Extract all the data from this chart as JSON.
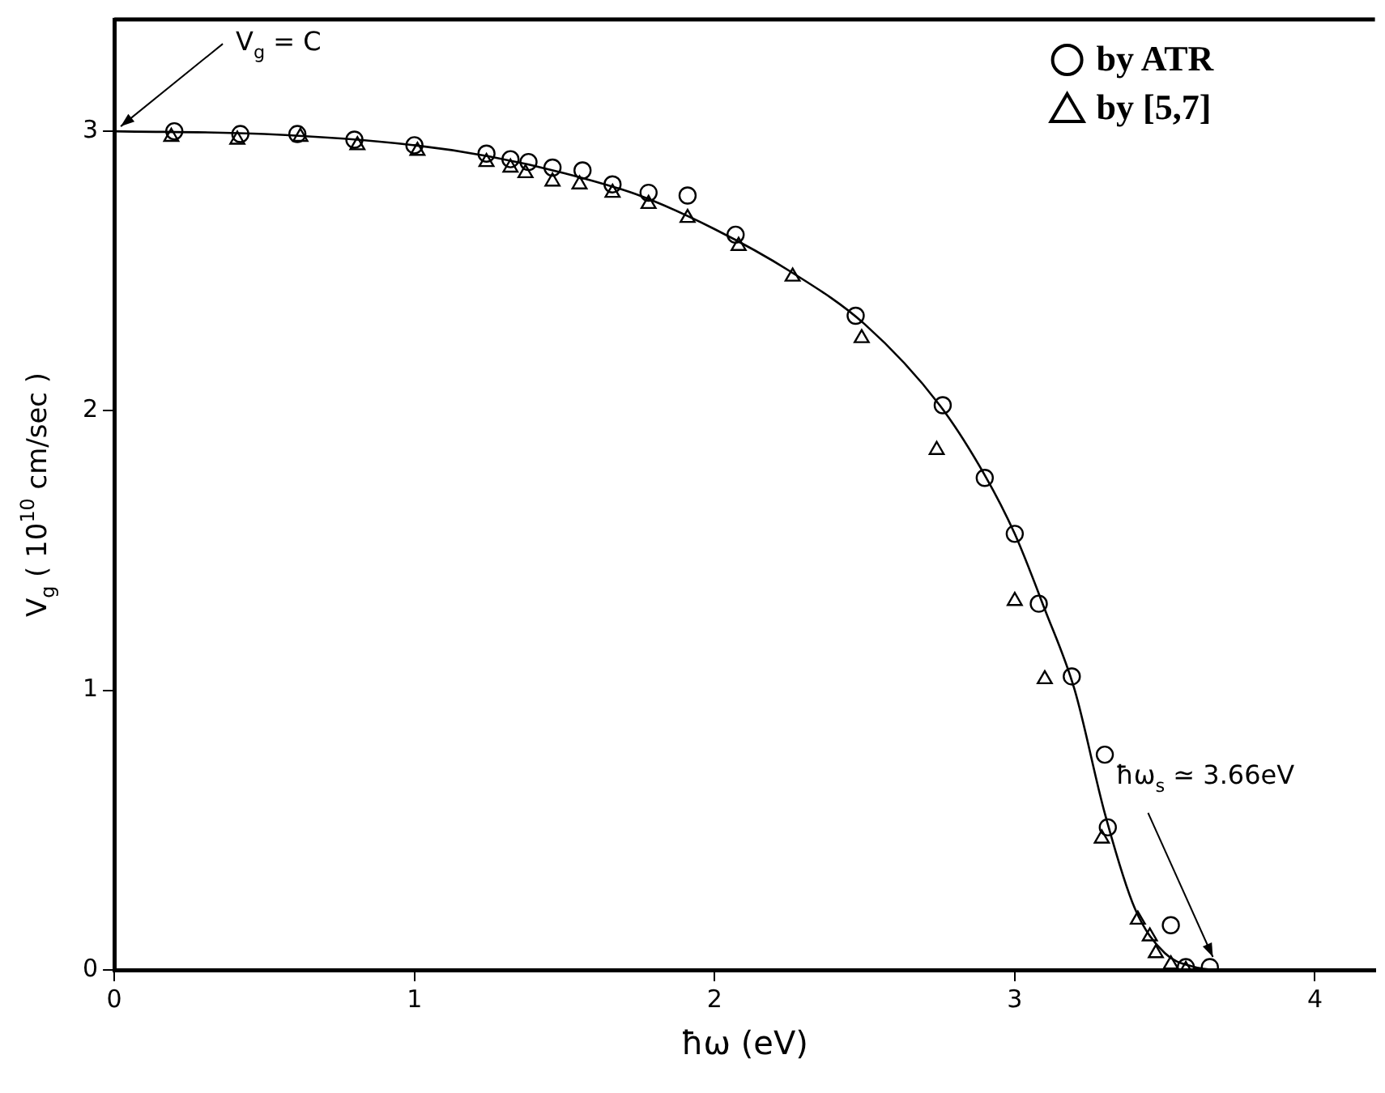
{
  "chart_data": {
    "type": "scatter",
    "xlabel": "ħω (eV)",
    "ylabel": "V$_{g}$ ( 10$^{10}$ cm/sec )",
    "xlim": [
      0,
      4.2
    ],
    "xticks": [
      0,
      1,
      2,
      3,
      4
    ],
    "ylim": [
      0,
      3.4
    ],
    "yticks": [
      0,
      1,
      2,
      3
    ],
    "grid": false,
    "legend": "top right",
    "series": [
      {
        "name": "by ATR",
        "color": "#000000",
        "marker": "circle",
        "x": [
          0.2,
          0.42,
          0.61,
          0.8,
          1.0,
          1.24,
          1.32,
          1.38,
          1.46,
          1.56,
          1.66,
          1.78,
          1.91,
          2.07,
          2.47,
          2.76,
          2.9,
          3.0,
          3.08,
          3.19,
          3.3,
          3.31,
          3.52,
          3.57,
          3.65
        ],
        "values": [
          3.0,
          2.99,
          2.99,
          2.97,
          2.95,
          2.92,
          2.9,
          2.89,
          2.87,
          2.86,
          2.81,
          2.78,
          2.77,
          2.63,
          2.34,
          2.02,
          1.76,
          1.56,
          1.31,
          1.05,
          0.77,
          0.51,
          0.16,
          0.01,
          0.01
        ]
      },
      {
        "name": "by [5,7]",
        "color": "#000000",
        "marker": "triangle",
        "x": [
          0.19,
          0.41,
          0.62,
          0.81,
          1.01,
          1.24,
          1.32,
          1.37,
          1.46,
          1.55,
          1.66,
          1.78,
          1.91,
          2.08,
          2.26,
          2.49,
          2.74,
          3.0,
          3.1,
          3.29,
          3.41,
          3.45,
          3.47,
          3.52,
          3.57
        ],
        "values": [
          2.98,
          2.97,
          2.98,
          2.95,
          2.93,
          2.89,
          2.87,
          2.85,
          2.82,
          2.81,
          2.78,
          2.74,
          2.69,
          2.59,
          2.48,
          2.26,
          1.86,
          1.32,
          1.04,
          0.47,
          0.18,
          0.12,
          0.06,
          0.02,
          0.0
        ]
      },
      {
        "type": "line",
        "color": "#000000",
        "marker": "none",
        "line_style": "solid",
        "x": [
          0,
          0.5,
          1.0,
          1.25,
          1.5,
          1.75,
          2.0,
          2.25,
          2.5,
          2.75,
          2.9,
          3.0,
          3.1,
          3.2,
          3.3,
          3.4,
          3.5,
          3.6,
          3.66
        ],
        "values": [
          3.0,
          2.99,
          2.95,
          2.91,
          2.85,
          2.77,
          2.65,
          2.5,
          2.31,
          2.02,
          1.77,
          1.56,
          1.29,
          1.0,
          0.56,
          0.22,
          0.06,
          0.01,
          0.0
        ]
      }
    ],
    "annotations": [
      {
        "text": "V$_{g}$ = C",
        "x": 0,
        "y": 3.0
      },
      {
        "text": "ħω$_{s}$ ≃ 3.66eV",
        "x": 3.66,
        "y": 0
      }
    ]
  }
}
